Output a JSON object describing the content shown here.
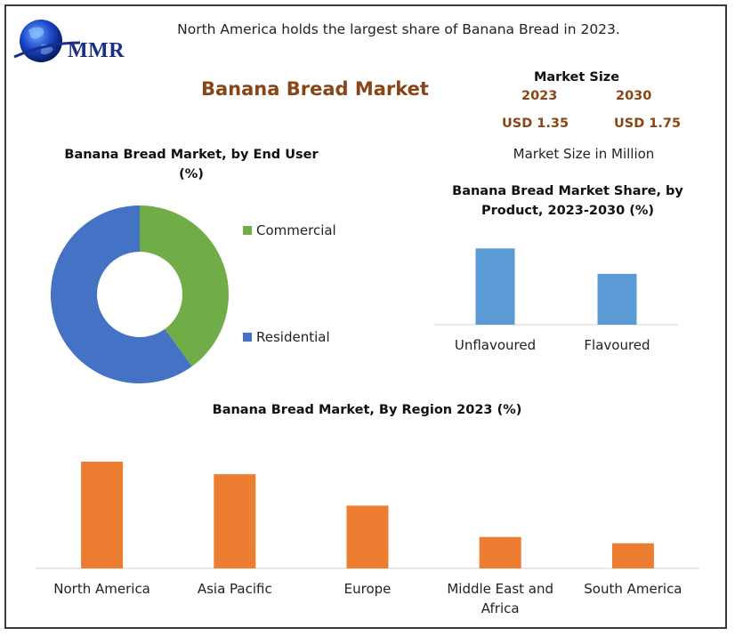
{
  "headline": "North America holds the largest share of Banana Bread in 2023.",
  "logo": {
    "text": "MMR",
    "icon": "globe-icon"
  },
  "main_title": "Banana Bread Market",
  "market_size": {
    "title": "Market Size",
    "year_2023": "2023",
    "year_2030": "2030",
    "value_2023": "USD 1.35",
    "value_2030": "USD 1.75",
    "unit": "Market Size in Million"
  },
  "colors": {
    "commercial": "#70ad47",
    "residential": "#4472c4",
    "product_bar": "#5b9bd5",
    "region_bar": "#ed7d31",
    "title_brown": "#8a4516"
  },
  "chart_data": [
    {
      "type": "pie",
      "title": "Banana Bread Market, by End User (%)",
      "categories": [
        "Commercial",
        "Residential"
      ],
      "values": [
        40,
        60
      ],
      "legend": "right",
      "donut": true
    },
    {
      "type": "bar",
      "title": "Banana Bread Market Share, by Product, 2023-2030 (%)",
      "categories": [
        "Unflavoured",
        "Flavoured"
      ],
      "values": [
        60,
        40
      ],
      "ylim": [
        0,
        70
      ]
    },
    {
      "type": "bar",
      "title": "Banana Bread Market, By Region 2023 (%)",
      "categories": [
        "North America",
        "Asia Pacific",
        "Europe",
        "Middle East and Africa",
        "South America"
      ],
      "values": [
        34,
        30,
        20,
        10,
        8
      ],
      "ylim": [
        0,
        34
      ]
    }
  ]
}
